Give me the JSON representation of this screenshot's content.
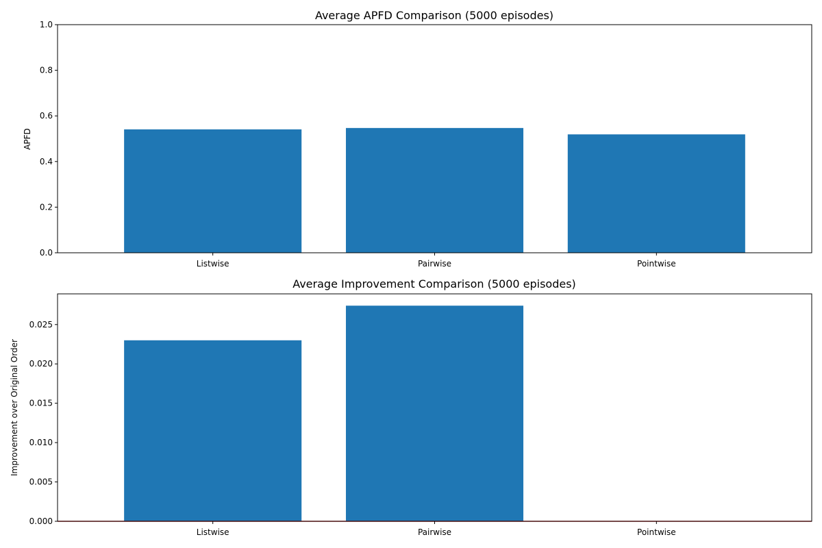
{
  "colors": {
    "bar": "#1f77b4",
    "baseline": "#d62728",
    "axes": "#000000",
    "background": "#ffffff"
  },
  "chart_data": [
    {
      "type": "bar",
      "title": "Average APFD Comparison (5000 episodes)",
      "xlabel": "",
      "ylabel": "APFD",
      "categories": [
        "Listwise",
        "Pairwise",
        "Pointwise"
      ],
      "values": [
        0.541,
        0.547,
        0.519
      ],
      "ylim": [
        0,
        1.0
      ],
      "yticks": [
        0.0,
        0.2,
        0.4,
        0.6,
        0.8,
        1.0
      ],
      "ytick_labels": [
        "0.0",
        "0.2",
        "0.4",
        "0.6",
        "0.8",
        "1.0"
      ],
      "grid": false,
      "legend": "none"
    },
    {
      "type": "bar",
      "title": "Average Improvement Comparison (5000 episodes)",
      "xlabel": "",
      "ylabel": "Improvement over Original Order",
      "categories": [
        "Listwise",
        "Pairwise",
        "Pointwise"
      ],
      "values": [
        0.023,
        0.0274,
        0.0
      ],
      "ylim": [
        0,
        0.0289
      ],
      "yticks": [
        0.0,
        0.005,
        0.01,
        0.015,
        0.02,
        0.025
      ],
      "ytick_labels": [
        "0.000",
        "0.005",
        "0.010",
        "0.015",
        "0.020",
        "0.025"
      ],
      "baseline": 0,
      "grid": false,
      "legend": "none"
    }
  ]
}
